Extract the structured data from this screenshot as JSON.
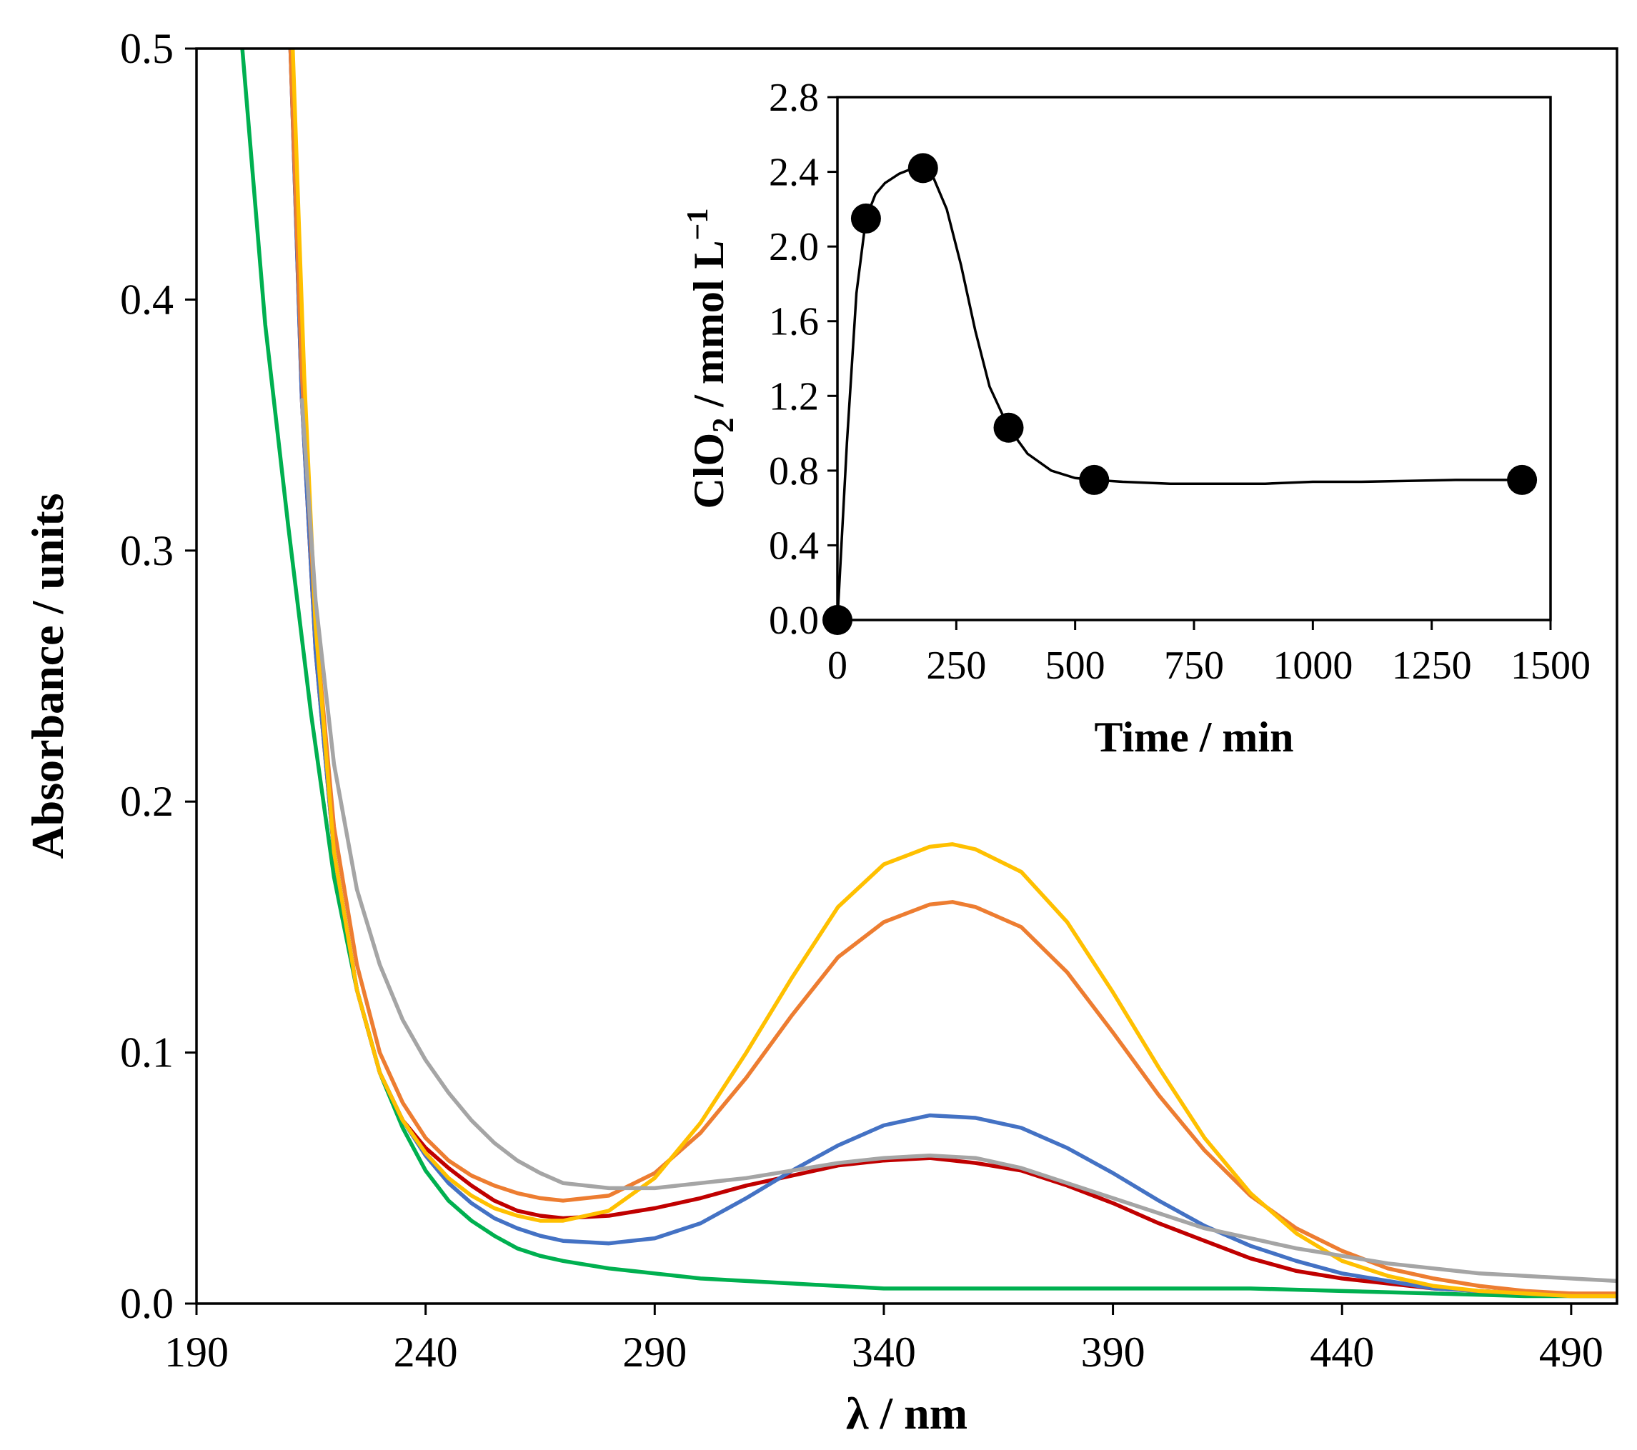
{
  "chart_data": [
    {
      "type": "line",
      "title": "",
      "xlabel": "λ / nm",
      "ylabel": "Absorbance / units",
      "xlim": [
        190,
        500
      ],
      "ylim": [
        0,
        0.5
      ],
      "xticks": [
        190,
        240,
        290,
        340,
        390,
        440,
        490
      ],
      "xtick_labels": [
        "190",
        "240",
        "290",
        "340",
        "390",
        "440",
        "490"
      ],
      "yticks": [
        0,
        0.1,
        0.2,
        0.3,
        0.4,
        0.5
      ],
      "ytick_labels": [
        "0.0",
        "0.1",
        "0.2",
        "0.3",
        "0.4",
        "0.5"
      ],
      "grid": false,
      "series": [
        {
          "name": "green",
          "color": "#00b050",
          "x": [
            200,
            205,
            210,
            215,
            220,
            225,
            230,
            235,
            240,
            245,
            250,
            255,
            260,
            265,
            270,
            280,
            290,
            300,
            310,
            320,
            330,
            340,
            350,
            360,
            380,
            400,
            420,
            440,
            460,
            480,
            500
          ],
          "y": [
            0.5,
            0.39,
            0.31,
            0.235,
            0.17,
            0.125,
            0.092,
            0.07,
            0.053,
            0.041,
            0.033,
            0.027,
            0.022,
            0.019,
            0.017,
            0.014,
            0.012,
            0.01,
            0.009,
            0.008,
            0.007,
            0.006,
            0.006,
            0.006,
            0.006,
            0.006,
            0.006,
            0.005,
            0.004,
            0.003,
            0.003
          ]
        },
        {
          "name": "red",
          "color": "#c00000",
          "x": [
            210.5,
            213,
            216,
            220,
            225,
            230,
            235,
            240,
            245,
            250,
            255,
            260,
            265,
            270,
            280,
            290,
            300,
            310,
            320,
            330,
            340,
            350,
            360,
            370,
            380,
            390,
            400,
            410,
            420,
            430,
            440,
            450,
            460,
            470,
            480,
            490,
            500
          ],
          "y": [
            0.5,
            0.36,
            0.26,
            0.18,
            0.125,
            0.092,
            0.073,
            0.062,
            0.054,
            0.047,
            0.041,
            0.037,
            0.035,
            0.034,
            0.035,
            0.038,
            0.042,
            0.047,
            0.051,
            0.055,
            0.057,
            0.058,
            0.056,
            0.053,
            0.047,
            0.04,
            0.032,
            0.025,
            0.018,
            0.013,
            0.01,
            0.008,
            0.006,
            0.005,
            0.004,
            0.004,
            0.003
          ]
        },
        {
          "name": "blue",
          "color": "#4472c4",
          "x": [
            210.5,
            213,
            216,
            220,
            225,
            230,
            235,
            240,
            245,
            250,
            255,
            260,
            265,
            270,
            280,
            290,
            300,
            310,
            320,
            330,
            340,
            350,
            360,
            370,
            380,
            390,
            400,
            410,
            420,
            430,
            440,
            450,
            460,
            470,
            480,
            490,
            500
          ],
          "y": [
            0.5,
            0.36,
            0.26,
            0.18,
            0.125,
            0.092,
            0.073,
            0.059,
            0.048,
            0.04,
            0.034,
            0.03,
            0.027,
            0.025,
            0.024,
            0.026,
            0.032,
            0.042,
            0.053,
            0.063,
            0.071,
            0.075,
            0.074,
            0.07,
            0.062,
            0.052,
            0.041,
            0.031,
            0.023,
            0.017,
            0.012,
            0.009,
            0.006,
            0.005,
            0.004,
            0.003,
            0.003
          ]
        },
        {
          "name": "orange",
          "color": "#ed7d31",
          "x": [
            210.5,
            213,
            216,
            220,
            225,
            230,
            235,
            240,
            245,
            250,
            255,
            260,
            265,
            270,
            280,
            290,
            300,
            310,
            320,
            330,
            340,
            350,
            355,
            360,
            370,
            380,
            390,
            400,
            410,
            420,
            430,
            440,
            450,
            460,
            470,
            480,
            490,
            500
          ],
          "y": [
            0.5,
            0.37,
            0.27,
            0.19,
            0.135,
            0.1,
            0.08,
            0.066,
            0.057,
            0.051,
            0.047,
            0.044,
            0.042,
            0.041,
            0.043,
            0.052,
            0.068,
            0.09,
            0.115,
            0.138,
            0.152,
            0.159,
            0.16,
            0.158,
            0.15,
            0.132,
            0.108,
            0.083,
            0.061,
            0.043,
            0.03,
            0.021,
            0.014,
            0.01,
            0.007,
            0.005,
            0.004,
            0.004
          ]
        },
        {
          "name": "yellow",
          "color": "#ffc000",
          "x": [
            211,
            213.5,
            216,
            220,
            225,
            230,
            235,
            240,
            245,
            250,
            255,
            260,
            265,
            270,
            280,
            290,
            300,
            310,
            320,
            330,
            340,
            350,
            355,
            360,
            370,
            380,
            390,
            400,
            410,
            420,
            430,
            440,
            450,
            460,
            470,
            480,
            490,
            500
          ],
          "y": [
            0.5,
            0.37,
            0.27,
            0.18,
            0.125,
            0.092,
            0.073,
            0.06,
            0.05,
            0.043,
            0.038,
            0.035,
            0.033,
            0.033,
            0.037,
            0.05,
            0.072,
            0.1,
            0.13,
            0.158,
            0.175,
            0.182,
            0.183,
            0.181,
            0.172,
            0.152,
            0.124,
            0.094,
            0.066,
            0.044,
            0.028,
            0.017,
            0.011,
            0.007,
            0.005,
            0.004,
            0.003,
            0.003
          ]
        },
        {
          "name": "gray",
          "color": "#a5a5a5",
          "x": [
            213,
            216,
            220,
            225,
            230,
            235,
            240,
            245,
            250,
            255,
            260,
            265,
            270,
            280,
            290,
            300,
            310,
            320,
            330,
            340,
            350,
            360,
            370,
            380,
            390,
            400,
            410,
            420,
            430,
            440,
            450,
            460,
            470,
            480,
            490,
            500
          ],
          "y": [
            0.36,
            0.28,
            0.215,
            0.165,
            0.135,
            0.113,
            0.097,
            0.084,
            0.073,
            0.064,
            0.057,
            0.052,
            0.048,
            0.046,
            0.046,
            0.048,
            0.05,
            0.053,
            0.056,
            0.058,
            0.059,
            0.058,
            0.054,
            0.048,
            0.042,
            0.036,
            0.03,
            0.026,
            0.022,
            0.019,
            0.016,
            0.014,
            0.012,
            0.011,
            0.01,
            0.009
          ]
        }
      ]
    },
    {
      "type": "line",
      "title": "",
      "xlabel": "Time / min",
      "ylabel": "ClO₂ / mmol L⁻¹",
      "ylabel_parts": [
        "ClO",
        "2",
        " / mmol L",
        "−1"
      ],
      "xlim": [
        0,
        1500
      ],
      "ylim": [
        0,
        2.8
      ],
      "xticks": [
        0,
        250,
        500,
        750,
        1000,
        1250,
        1500
      ],
      "xtick_labels": [
        "0",
        "250",
        "500",
        "750",
        "1000",
        "1250",
        "1500"
      ],
      "yticks": [
        0,
        0.4,
        0.8,
        1.2,
        1.6,
        2.0,
        2.4,
        2.8
      ],
      "ytick_labels": [
        "0.0",
        "0.4",
        "0.8",
        "1.2",
        "1.6",
        "2.0",
        "2.4",
        "2.8"
      ],
      "grid": false,
      "points": {
        "x": [
          0,
          60,
          180,
          360,
          540,
          1440
        ],
        "y": [
          0.0,
          2.15,
          2.42,
          1.03,
          0.75,
          0.75
        ]
      },
      "smooth_curve": {
        "x": [
          0,
          20,
          40,
          60,
          80,
          100,
          130,
          160,
          180,
          200,
          230,
          260,
          290,
          320,
          360,
          400,
          450,
          500,
          540,
          600,
          700,
          800,
          900,
          1000,
          1100,
          1200,
          1300,
          1440
        ],
        "y": [
          0.0,
          0.95,
          1.75,
          2.15,
          2.28,
          2.34,
          2.39,
          2.42,
          2.42,
          2.38,
          2.2,
          1.9,
          1.55,
          1.25,
          1.03,
          0.89,
          0.8,
          0.76,
          0.75,
          0.74,
          0.73,
          0.73,
          0.73,
          0.74,
          0.74,
          0.745,
          0.75,
          0.75
        ]
      }
    }
  ]
}
